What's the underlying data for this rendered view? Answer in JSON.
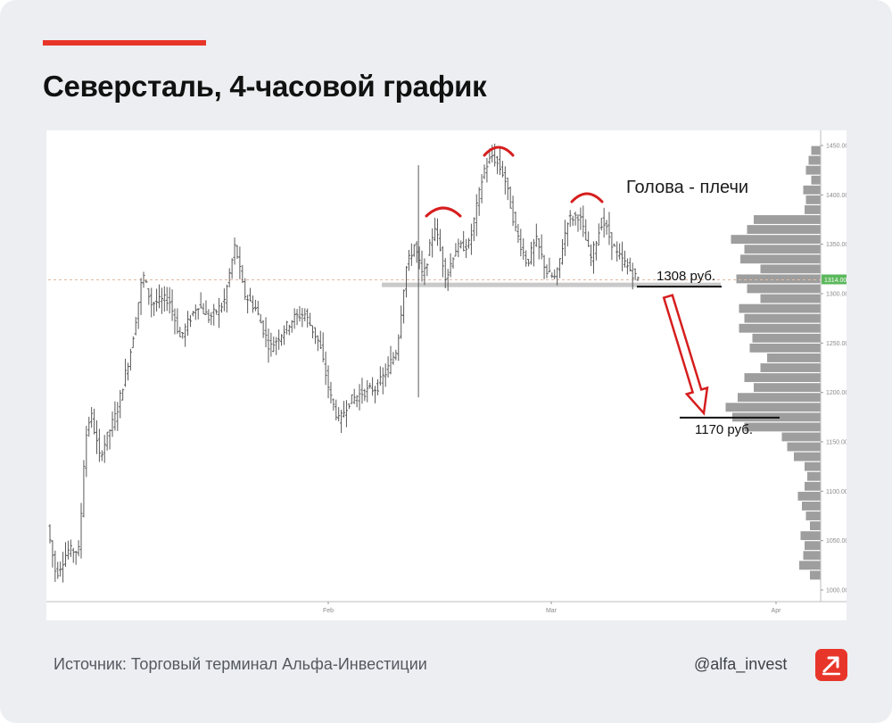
{
  "header": {
    "title": "Северсталь, 4-часовой график"
  },
  "colors": {
    "accent": "#e8352a",
    "bars": "#595959",
    "volume_profile": "#9e9e9e",
    "price_label_bg": "#5cb85c",
    "annotation_arcs": "#d61e1e"
  },
  "chart_data": {
    "type": "ohlc",
    "title": "",
    "x_tick_labels": [
      "Feb",
      "Mar",
      "Apr"
    ],
    "y_tick_labels": [
      "1450.00",
      "1400.00",
      "1350.00",
      "1300.00",
      "1250.00",
      "1200.00",
      "1150.00",
      "1100.00",
      "1050.00",
      "1000.00"
    ],
    "ylim": [
      995,
      1455
    ],
    "current_price_label": "1314.00",
    "current_price": 1314,
    "support_level": 1308,
    "target_level": 1170,
    "pattern_label": "Голова - плечи",
    "level_labels": [
      "1308 руб.",
      "1170 руб."
    ],
    "price_path": [
      {
        "t": 0,
        "p": 1065
      },
      {
        "t": 3,
        "p": 1015
      },
      {
        "t": 7,
        "p": 1040
      },
      {
        "t": 11,
        "p": 1040
      },
      {
        "t": 13,
        "p": 1150
      },
      {
        "t": 15,
        "p": 1180
      },
      {
        "t": 18,
        "p": 1135
      },
      {
        "t": 24,
        "p": 1180
      },
      {
        "t": 29,
        "p": 1245
      },
      {
        "t": 33,
        "p": 1320
      },
      {
        "t": 36,
        "p": 1290
      },
      {
        "t": 42,
        "p": 1295
      },
      {
        "t": 46,
        "p": 1255
      },
      {
        "t": 52,
        "p": 1290
      },
      {
        "t": 56,
        "p": 1275
      },
      {
        "t": 61,
        "p": 1290
      },
      {
        "t": 65,
        "p": 1350
      },
      {
        "t": 68,
        "p": 1300
      },
      {
        "t": 72,
        "p": 1285
      },
      {
        "t": 77,
        "p": 1245
      },
      {
        "t": 81,
        "p": 1260
      },
      {
        "t": 85,
        "p": 1275
      },
      {
        "t": 89,
        "p": 1280
      },
      {
        "t": 94,
        "p": 1250
      },
      {
        "t": 98,
        "p": 1195
      },
      {
        "t": 101,
        "p": 1170
      },
      {
        "t": 104,
        "p": 1190
      },
      {
        "t": 109,
        "p": 1200
      },
      {
        "t": 114,
        "p": 1205
      },
      {
        "t": 118,
        "p": 1225
      },
      {
        "t": 121,
        "p": 1245
      },
      {
        "t": 124,
        "p": 1325
      },
      {
        "t": 127,
        "p": 1350
      },
      {
        "t": 130,
        "p": 1315
      },
      {
        "t": 134,
        "p": 1370
      },
      {
        "t": 138,
        "p": 1315
      },
      {
        "t": 141,
        "p": 1345
      },
      {
        "t": 146,
        "p": 1350
      },
      {
        "t": 151,
        "p": 1425
      },
      {
        "t": 154,
        "p": 1440
      },
      {
        "t": 158,
        "p": 1420
      },
      {
        "t": 162,
        "p": 1365
      },
      {
        "t": 166,
        "p": 1330
      },
      {
        "t": 169,
        "p": 1355
      },
      {
        "t": 173,
        "p": 1320
      },
      {
        "t": 176,
        "p": 1315
      },
      {
        "t": 180,
        "p": 1375
      },
      {
        "t": 184,
        "p": 1380
      },
      {
        "t": 188,
        "p": 1335
      },
      {
        "t": 192,
        "p": 1375
      },
      {
        "t": 197,
        "p": 1340
      },
      {
        "t": 200,
        "p": 1330
      },
      {
        "t": 204,
        "p": 1315
      }
    ],
    "volume_profile": [
      {
        "price": 1445,
        "volume": 0.07
      },
      {
        "price": 1435,
        "volume": 0.09
      },
      {
        "price": 1425,
        "volume": 0.11
      },
      {
        "price": 1415,
        "volume": 0.07
      },
      {
        "price": 1405,
        "volume": 0.13
      },
      {
        "price": 1395,
        "volume": 0.11
      },
      {
        "price": 1385,
        "volume": 0.12
      },
      {
        "price": 1375,
        "volume": 0.5
      },
      {
        "price": 1365,
        "volume": 0.55
      },
      {
        "price": 1355,
        "volume": 0.67
      },
      {
        "price": 1345,
        "volume": 0.57
      },
      {
        "price": 1335,
        "volume": 0.6
      },
      {
        "price": 1325,
        "volume": 0.45
      },
      {
        "price": 1315,
        "volume": 0.63
      },
      {
        "price": 1305,
        "volume": 0.55
      },
      {
        "price": 1295,
        "volume": 0.45
      },
      {
        "price": 1285,
        "volume": 0.61
      },
      {
        "price": 1275,
        "volume": 0.57
      },
      {
        "price": 1265,
        "volume": 0.61
      },
      {
        "price": 1255,
        "volume": 0.51
      },
      {
        "price": 1245,
        "volume": 0.53
      },
      {
        "price": 1235,
        "volume": 0.4
      },
      {
        "price": 1225,
        "volume": 0.45
      },
      {
        "price": 1215,
        "volume": 0.57
      },
      {
        "price": 1205,
        "volume": 0.5
      },
      {
        "price": 1195,
        "volume": 0.62
      },
      {
        "price": 1185,
        "volume": 0.71
      },
      {
        "price": 1175,
        "volume": 0.66
      },
      {
        "price": 1165,
        "volume": 0.57
      },
      {
        "price": 1155,
        "volume": 0.29
      },
      {
        "price": 1145,
        "volume": 0.25
      },
      {
        "price": 1135,
        "volume": 0.2
      },
      {
        "price": 1125,
        "volume": 0.12
      },
      {
        "price": 1115,
        "volume": 0.1
      },
      {
        "price": 1105,
        "volume": 0.12
      },
      {
        "price": 1095,
        "volume": 0.17
      },
      {
        "price": 1085,
        "volume": 0.14
      },
      {
        "price": 1075,
        "volume": 0.11
      },
      {
        "price": 1065,
        "volume": 0.08
      },
      {
        "price": 1055,
        "volume": 0.15
      },
      {
        "price": 1045,
        "volume": 0.12
      },
      {
        "price": 1035,
        "volume": 0.13
      },
      {
        "price": 1025,
        "volume": 0.16
      },
      {
        "price": 1015,
        "volume": 0.08
      }
    ]
  },
  "footer": {
    "source": "Источник: Торговый терминал Альфа-Инвестиции",
    "handle": "@alfa_invest"
  }
}
